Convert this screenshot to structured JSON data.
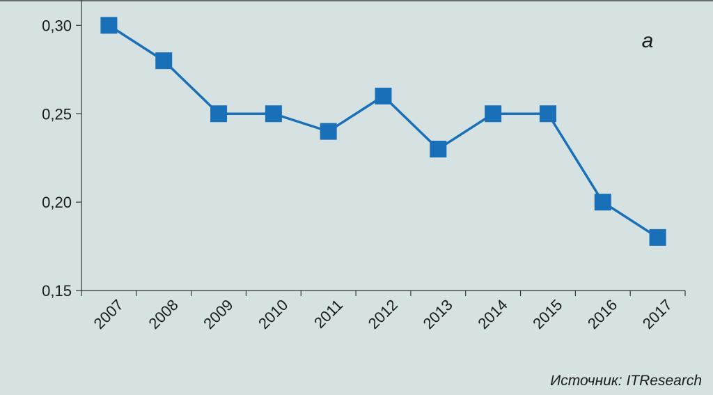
{
  "chart_data": {
    "type": "line",
    "categories": [
      "2007",
      "2008",
      "2009",
      "2010",
      "2011",
      "2012",
      "2013",
      "2014",
      "2015",
      "2016",
      "2017"
    ],
    "values": [
      0.3,
      0.28,
      0.25,
      0.25,
      0.24,
      0.26,
      0.23,
      0.25,
      0.25,
      0.2,
      0.18
    ],
    "color": "#1a70b8",
    "ylim": [
      0.15,
      0.31
    ],
    "yticks": [
      {
        "value": 0.15,
        "label": "0,15"
      },
      {
        "value": 0.2,
        "label": "0,20"
      },
      {
        "value": 0.25,
        "label": "0,25"
      },
      {
        "value": 0.3,
        "label": "0,30"
      }
    ],
    "annotation": "a",
    "source": "Источник: ITResearch"
  }
}
